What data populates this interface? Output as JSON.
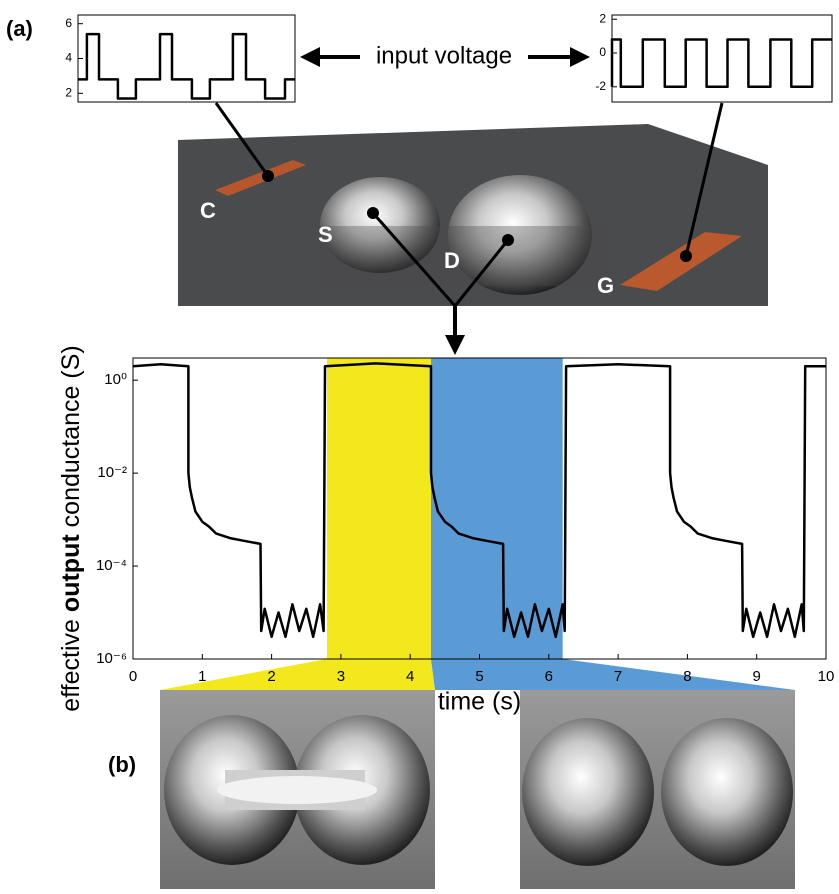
{
  "labels": {
    "a": "(a)",
    "b": "(b)"
  },
  "annotation": "input voltage",
  "device_labels": [
    "C",
    "S",
    "D",
    "G"
  ],
  "chart_data": [
    {
      "type": "line",
      "color": "#000000",
      "x": [
        0,
        0.41,
        0.41,
        0.97,
        0.97,
        1.84,
        1.84,
        2.67,
        2.67,
        3.78,
        3.78,
        4.33,
        4.33,
        5.25,
        5.25,
        6.08,
        6.08,
        7.14,
        7.14,
        7.74,
        7.74,
        8.62,
        8.62,
        9.54,
        9.54,
        10
      ],
      "values": [
        2.8,
        2.8,
        5.4,
        5.4,
        2.8,
        2.8,
        1.7,
        1.7,
        2.8,
        2.8,
        5.4,
        5.4,
        2.8,
        2.8,
        1.7,
        1.7,
        2.8,
        2.8,
        5.4,
        5.4,
        2.8,
        2.8,
        1.7,
        1.7,
        2.8,
        2.8
      ],
      "xlim": [
        0,
        10
      ],
      "ylim": [
        1.5,
        6.5
      ],
      "yticks": [
        2,
        4,
        6
      ]
    },
    {
      "type": "line",
      "color": "#000000",
      "x": [
        0,
        0,
        0.4,
        0.4,
        1.4,
        1.4,
        2.4,
        2.4,
        3.35,
        3.35,
        4.3,
        4.3,
        5.25,
        5.25,
        6.2,
        6.2,
        7.2,
        7.2,
        8.15,
        8.15,
        9.1,
        9.1,
        10
      ],
      "values": [
        -2,
        0.8,
        0.8,
        -2,
        -2,
        0.8,
        0.8,
        -2,
        -2,
        0.8,
        0.8,
        -2,
        -2,
        0.8,
        0.8,
        -2,
        -2,
        0.8,
        0.8,
        -2,
        -2,
        0.8,
        0.8
      ],
      "xlim": [
        0,
        10
      ],
      "ylim": [
        -2.9,
        2.25
      ],
      "yticks": [
        -2,
        0,
        2
      ]
    },
    {
      "type": "line",
      "color": "#000000",
      "log_y": true,
      "ylabel_parts": [
        "effective",
        "output",
        "conductance (S)"
      ],
      "xlabel": "time (s)",
      "highlights": [
        {
          "xlim": [
            2.8,
            4.3
          ],
          "color": "#f2e81c"
        },
        {
          "xlim": [
            4.3,
            6.2
          ],
          "color": "#5b9bd5"
        }
      ],
      "x": [
        0,
        0.4,
        0.8,
        0.8,
        0.82,
        0.85,
        0.9,
        1.0,
        1.1,
        1.2,
        1.4,
        1.6,
        1.84,
        1.85,
        1.9,
        2.0,
        2.1,
        2.2,
        2.3,
        2.4,
        2.5,
        2.6,
        2.7,
        2.75,
        2.77,
        3.5,
        4.3,
        4.3,
        4.32,
        4.35,
        4.4,
        4.5,
        4.6,
        4.7,
        4.9,
        5.1,
        5.34,
        5.35,
        5.4,
        5.5,
        5.6,
        5.7,
        5.8,
        5.9,
        6.0,
        6.1,
        6.2,
        6.23,
        6.25,
        7.0,
        7.75,
        7.75,
        7.77,
        7.8,
        7.85,
        7.95,
        8.05,
        8.15,
        8.35,
        8.55,
        8.79,
        8.8,
        8.85,
        8.95,
        9.05,
        9.15,
        9.25,
        9.35,
        9.45,
        9.55,
        9.65,
        9.68,
        9.7,
        10
      ],
      "values": [
        2,
        2.2,
        2,
        0.01,
        0.005,
        0.003,
        0.0015,
        0.0009,
        0.0007,
        0.0005,
        0.0004,
        0.00035,
        0.0003,
        4e-06,
        1.2e-05,
        3e-06,
        1e-05,
        3e-06,
        1.5e-05,
        4e-06,
        1.2e-05,
        3e-06,
        1.5e-05,
        4e-06,
        2,
        2.3,
        2,
        0.01,
        0.005,
        0.003,
        0.0015,
        0.0009,
        0.0007,
        0.0005,
        0.0004,
        0.00035,
        0.0003,
        4e-06,
        1.2e-05,
        3e-06,
        1e-05,
        3e-06,
        1.5e-05,
        4e-06,
        1.2e-05,
        3e-06,
        1.5e-05,
        4e-06,
        2,
        2.2,
        2,
        0.01,
        0.005,
        0.003,
        0.0015,
        0.0009,
        0.0007,
        0.0005,
        0.0004,
        0.00035,
        0.0003,
        4e-06,
        1.2e-05,
        3e-06,
        1e-05,
        3e-06,
        1.5e-05,
        4e-06,
        1.2e-05,
        3e-06,
        1.5e-05,
        4e-06,
        2,
        2
      ],
      "xlim": [
        0,
        10
      ],
      "ylim": [
        1e-06,
        3
      ],
      "xticks": [
        0,
        1,
        2,
        3,
        4,
        5,
        6,
        7,
        8,
        9,
        10
      ],
      "yticks": [
        {
          "value": 1,
          "label": "10⁰"
        },
        {
          "value": 0.01,
          "label": "10⁻²"
        },
        {
          "value": 0.0001,
          "label": "10⁻⁴"
        },
        {
          "value": 1e-06,
          "label": "10⁻⁶"
        }
      ]
    }
  ]
}
